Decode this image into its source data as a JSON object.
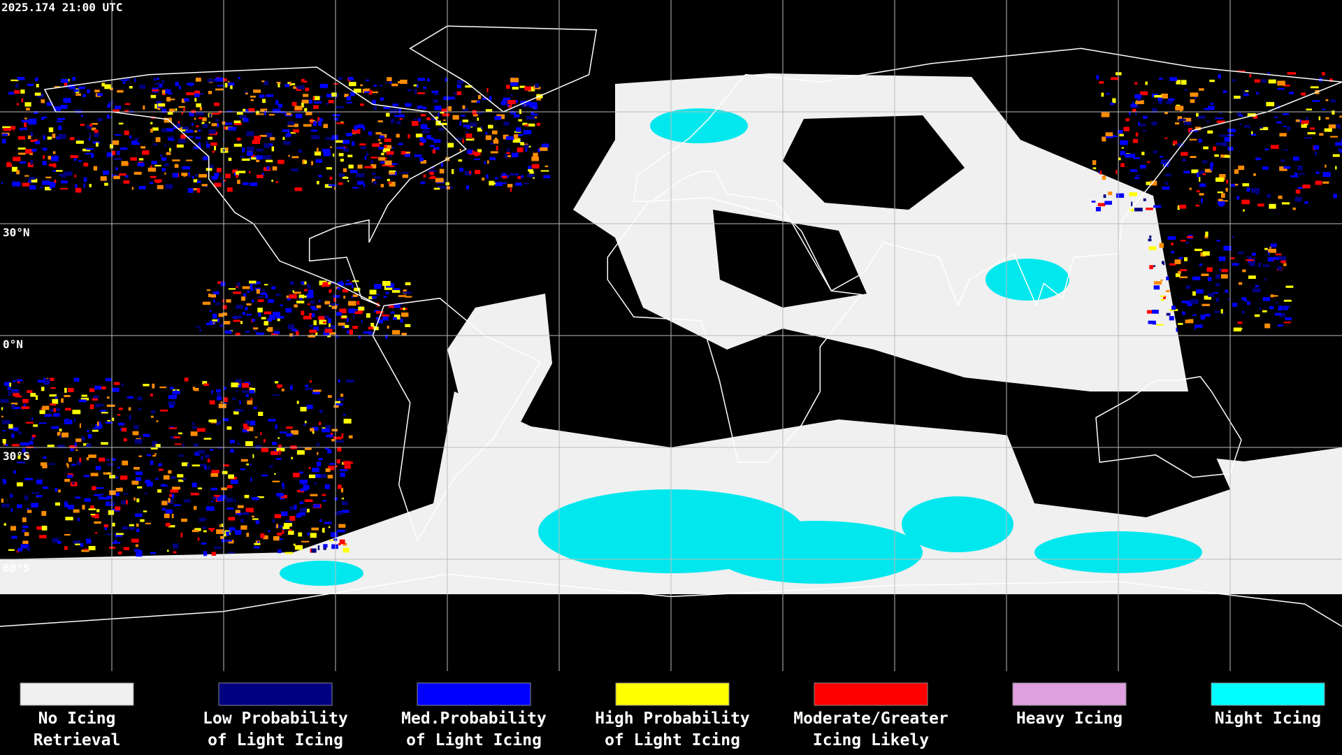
{
  "header": {
    "timestamp": "2025.174 21:00 UTC"
  },
  "map": {
    "latitude_labels": [
      "30°N",
      "0°N",
      "30°S",
      "60°S"
    ]
  },
  "legend": {
    "items": [
      {
        "label_lines": [
          "No Icing",
          "Retrieval"
        ],
        "color": "#f0f0f0"
      },
      {
        "label_lines": [
          "Low Probability",
          "of Light Icing"
        ],
        "color": "#000080"
      },
      {
        "label_lines": [
          "Med.Probability",
          "of Light Icing"
        ],
        "color": "#0000ff"
      },
      {
        "label_lines": [
          "High Probability",
          "of Light Icing"
        ],
        "color": "#ffff00"
      },
      {
        "label_lines": [
          "Moderate/Greater",
          "Icing Likely"
        ],
        "color": "#ff0000"
      },
      {
        "label_lines": [
          "Heavy Icing"
        ],
        "color": "#e0a0e0"
      },
      {
        "label_lines": [
          "Night Icing"
        ],
        "color": "#00ffff"
      }
    ]
  }
}
